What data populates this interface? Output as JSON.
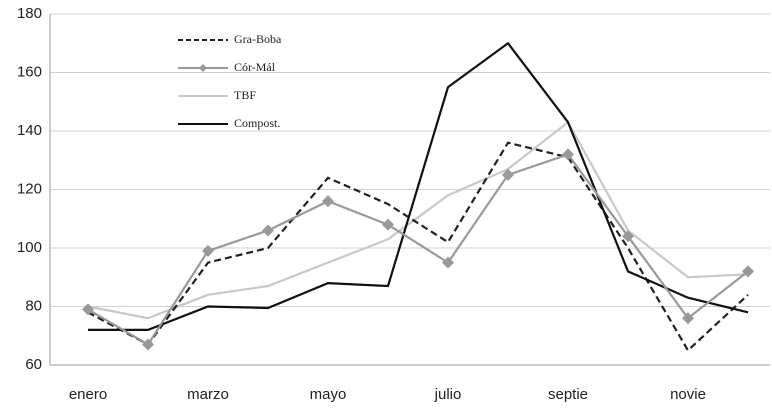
{
  "chart_data": {
    "type": "line",
    "categories": [
      "enero",
      null,
      "marzo",
      null,
      "mayo",
      null,
      "julio",
      null,
      "septie",
      null,
      "novie",
      null
    ],
    "series": [
      {
        "name": "Gra-Boba",
        "color": "#222222",
        "style": "dashed",
        "values": [
          78,
          67,
          95,
          100,
          124,
          115,
          102,
          136,
          131,
          100,
          65,
          84
        ]
      },
      {
        "name": "Cór-Mál",
        "color": "#999999",
        "style": "solid",
        "marker": "diamond",
        "values": [
          79,
          67,
          99,
          106,
          116,
          108,
          95,
          125,
          132,
          104,
          76,
          92
        ]
      },
      {
        "name": "TBF",
        "color": "#c8c8c8",
        "style": "solid",
        "values": [
          80,
          76,
          84,
          87,
          95,
          103,
          118,
          127,
          143,
          106,
          90,
          91
        ]
      },
      {
        "name": "Compost.",
        "color": "#111111",
        "style": "solid",
        "values": [
          72,
          72,
          80,
          79.5,
          88,
          87,
          155,
          170,
          143,
          92,
          83,
          78
        ]
      }
    ],
    "ylim": [
      60,
      180
    ],
    "yticks": [
      60,
      80,
      100,
      120,
      140,
      160,
      180
    ],
    "grid": true,
    "legend": "top-left"
  }
}
